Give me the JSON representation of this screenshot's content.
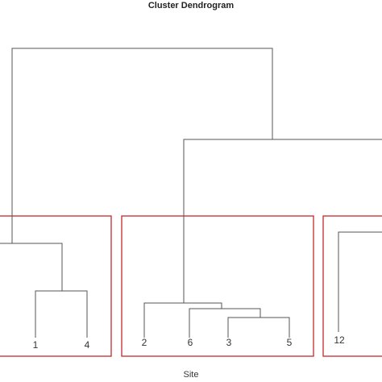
{
  "chart_data": {
    "type": "dendrogram",
    "title": "Cluster Dendrogram",
    "xlabel": "Site",
    "ylabel": "",
    "y_axis_shown": false,
    "leaf_labels": [
      "1",
      "4",
      "2",
      "6",
      "3",
      "5",
      "12"
    ],
    "merge_heights_relative": {
      "1+4": 0.22,
      "(1,4)+left": 0.37,
      "3+5": 0.19,
      "6+(3,5)": 0.23,
      "2+(6,(3,5))": 0.27,
      "middle+right": 0.74,
      "root": 1.0
    },
    "cluster_boxes": [
      {
        "color": "#c62828",
        "members": [
          "1",
          "4"
        ]
      },
      {
        "color": "#c62828",
        "members": [
          "2",
          "6",
          "3",
          "5"
        ]
      },
      {
        "color": "#c62828",
        "members": [
          "12"
        ]
      }
    ],
    "grid": false,
    "legend": "none"
  }
}
